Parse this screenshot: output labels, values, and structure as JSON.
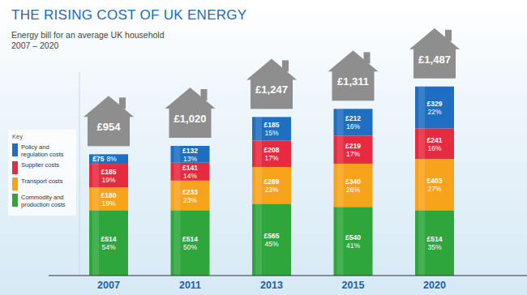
{
  "chart_data": {
    "type": "bar",
    "title": "THE RISING COST OF UK ENERGY",
    "subtitle": [
      "Energy bill for an average UK household",
      "2007 – 2020"
    ],
    "categories": [
      "2007",
      "2011",
      "2013",
      "2015",
      "2020"
    ],
    "stacked": true,
    "data_labels": true,
    "tick_labels": "x",
    "legend": "left",
    "legend_title": "Key",
    "ylim": [
      0,
      1600
    ],
    "series": [
      {
        "name": "Commodity and production costs",
        "color": "#2ea63b",
        "values": [
          514,
          514,
          565,
          540,
          514
        ],
        "value_labels": [
          "£514",
          "£514",
          "£565",
          "£540",
          "£514"
        ],
        "shares": [
          54,
          50,
          45,
          41,
          35
        ],
        "share_labels": [
          "54%",
          "50%",
          "45%",
          "41%",
          "35%"
        ]
      },
      {
        "name": "Transport costs",
        "color": "#f8a31c",
        "values": [
          180,
          233,
          289,
          340,
          403
        ],
        "value_labels": [
          "£180",
          "£233",
          "£289",
          "£340",
          "£403"
        ],
        "shares": [
          19,
          23,
          23,
          26,
          27
        ],
        "share_labels": [
          "19%",
          "23%",
          "23%",
          "26%",
          "27%"
        ]
      },
      {
        "name": "Supplier costs",
        "color": "#e62a3f",
        "values": [
          185,
          141,
          208,
          219,
          241
        ],
        "value_labels": [
          "£185",
          "£141",
          "£208",
          "£219",
          "£241"
        ],
        "shares": [
          19,
          14,
          17,
          17,
          16
        ],
        "share_labels": [
          "19%",
          "14%",
          "17%",
          "17%",
          "16%"
        ]
      },
      {
        "name": "Policy and regulation costs",
        "color": "#1e6fc1",
        "values": [
          75,
          132,
          185,
          212,
          329
        ],
        "value_labels": [
          "£75",
          "£132",
          "£185",
          "£212",
          "£329"
        ],
        "shares": [
          8,
          13,
          15,
          16,
          22
        ],
        "share_labels": [
          "8%",
          "13%",
          "15%",
          "16%",
          "22%"
        ]
      }
    ],
    "totals": [
      954,
      1020,
      1247,
      1311,
      1487
    ],
    "total_labels": [
      "£954",
      "£1,020",
      "£1,247",
      "£1,311",
      "£1,487"
    ]
  }
}
